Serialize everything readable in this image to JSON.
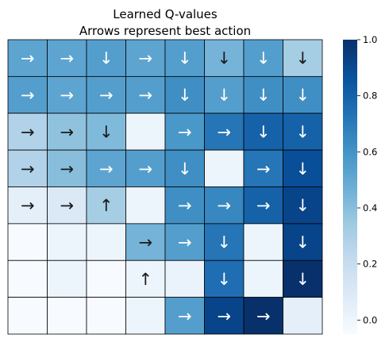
{
  "chart_data": {
    "type": "heatmap",
    "title": [
      "Learned Q-values",
      "Arrows represent best action"
    ],
    "rows": 8,
    "cols": 8,
    "values": [
      [
        0.52,
        0.52,
        0.55,
        0.52,
        0.55,
        0.45,
        0.55,
        0.32
      ],
      [
        0.55,
        0.52,
        0.55,
        0.55,
        0.62,
        0.55,
        0.62,
        0.62
      ],
      [
        0.28,
        0.38,
        0.42,
        0.0,
        0.58,
        0.72,
        0.8,
        0.8
      ],
      [
        0.28,
        0.4,
        0.52,
        0.55,
        0.62,
        0.0,
        0.72,
        0.88
      ],
      [
        0.05,
        0.1,
        0.32,
        0.0,
        0.62,
        0.65,
        0.8,
        0.92
      ],
      [
        -0.05,
        0.0,
        0.0,
        0.45,
        0.55,
        0.72,
        0.0,
        0.92
      ],
      [
        -0.05,
        0.0,
        -0.05,
        0.0,
        0.02,
        0.75,
        0.0,
        1.0
      ],
      [
        -0.05,
        -0.05,
        -0.05,
        0.0,
        0.55,
        0.92,
        1.0,
        0.05
      ]
    ],
    "arrows": [
      [
        "→",
        "→",
        "↓",
        "→",
        "↓",
        "↓",
        "↓",
        "↓"
      ],
      [
        "→",
        "→",
        "→",
        "→",
        "↓",
        "↓",
        "↓",
        "↓"
      ],
      [
        "→",
        "→",
        "↓",
        "",
        "→",
        "→",
        "↓",
        "↓"
      ],
      [
        "→",
        "→",
        "→",
        "→",
        "↓",
        "",
        "→",
        "↓"
      ],
      [
        "→",
        "→",
        "↑",
        "",
        "→",
        "→",
        "→",
        "↓"
      ],
      [
        "",
        "",
        "",
        "→",
        "→",
        "↓",
        "",
        "↓"
      ],
      [
        "",
        "",
        "",
        "↑",
        "",
        "↓",
        "",
        "↓"
      ],
      [
        "",
        "",
        "",
        "",
        "→",
        "→",
        "→",
        ""
      ]
    ],
    "vmin": -0.05,
    "vmax": 1.0,
    "colorbar_ticks": [
      "0.0",
      "0.2",
      "0.4",
      "0.6",
      "0.8",
      "1.0"
    ],
    "colormap": "Blues",
    "cell_border_color": "#000000"
  }
}
